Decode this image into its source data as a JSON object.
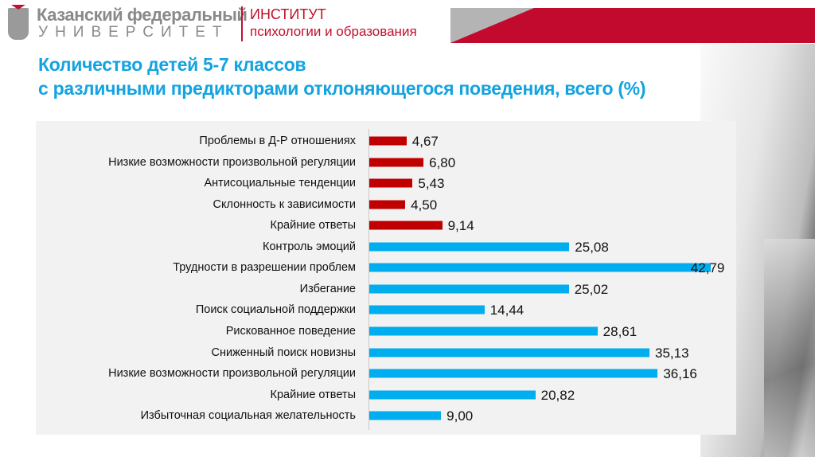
{
  "header": {
    "university_line1": "Казанский федеральный",
    "university_line2": "УНИВЕРСИТЕТ",
    "institute_line1": "ИНСТИТУТ",
    "institute_line2": "психологии и образования"
  },
  "colors": {
    "brand_red": "#c10a2e",
    "title_blue": "#13a3e0",
    "bar_red": "#c00000",
    "bar_blue": "#00aeef"
  },
  "chart_data": {
    "type": "bar",
    "orientation": "horizontal",
    "title": "Количество детей 5-7 классов с различными предикторами отклоняющегося поведения, всего (%)",
    "title_lines": [
      "Количество детей 5-7 классов",
      "с различными предикторами отклоняющегося поведения, всего (%)"
    ],
    "xlim": [
      0,
      45
    ],
    "grid": false,
    "categories": [
      "Проблемы в Д-Р отношениях",
      "Низкие возможности произвольной регуляции",
      "Антисоциальные тенденции",
      "Склонность к зависимости",
      "Крайние ответы",
      "Контроль эмоций",
      "Трудности в разрешении проблем",
      "Избегание",
      "Поиск социальной поддержки",
      "Рискованное поведение",
      "Сниженный поиск новизны",
      "Низкие возможности произвольной регуляции",
      "Крайние ответы",
      "Избыточная социальная желательность"
    ],
    "values": [
      4.67,
      6.8,
      5.43,
      4.5,
      9.14,
      25.08,
      42.79,
      25.02,
      14.44,
      28.61,
      35.13,
      36.16,
      20.82,
      9.0
    ],
    "value_labels": [
      "4,67",
      "6,80",
      "5,43",
      "4,50",
      "9,14",
      "25,08",
      "42,79",
      "25,02",
      "14,44",
      "28,61",
      "35,13",
      "36,16",
      "20,82",
      "9,00"
    ],
    "bar_colors": [
      "red",
      "red",
      "red",
      "red",
      "red",
      "blue",
      "blue",
      "blue",
      "blue",
      "blue",
      "blue",
      "blue",
      "blue",
      "blue"
    ]
  }
}
